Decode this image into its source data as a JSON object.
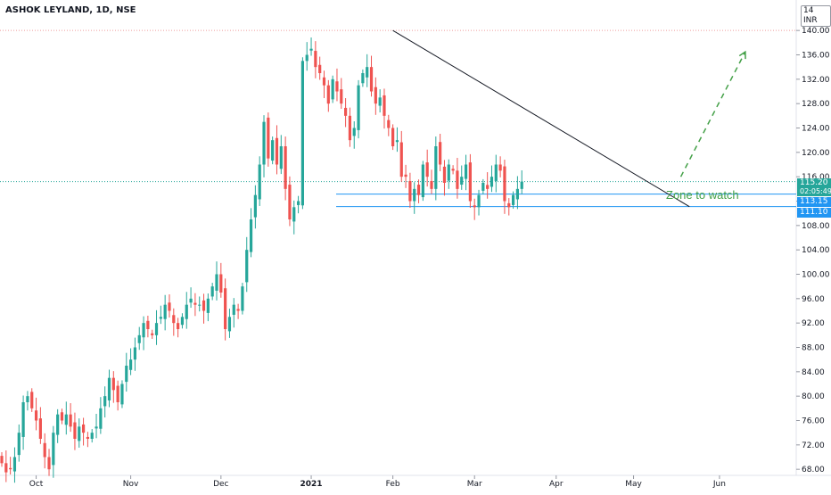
{
  "header": {
    "title": "ASHOK LEYLAND, 1D, NSE",
    "currency": "INR",
    "currency_prefix": "14"
  },
  "price_tags": {
    "last_price": "115.20",
    "countdown": "02:05:49",
    "level_upper": "113.15",
    "level_lower": "111.10",
    "last_color": "#26a69a",
    "level_color": "#2196f3"
  },
  "annotation": {
    "text": "Zone to watch",
    "color": "#43a047"
  },
  "chart_data": {
    "type": "candlestick",
    "title": "ASHOK LEYLAND, 1D, NSE",
    "xlabel": "",
    "ylabel": "",
    "ylim": [
      67,
      145
    ],
    "y_ticks": [
      "68.00",
      "72.00",
      "76.00",
      "80.00",
      "84.00",
      "88.00",
      "92.00",
      "96.00",
      "100.00",
      "104.00",
      "108.00",
      "112.00",
      "116.00",
      "120.00",
      "124.00",
      "128.00",
      "132.00",
      "136.00",
      "140.00"
    ],
    "x_ticks": [
      {
        "label": "Oct",
        "bar": 8,
        "bold": false
      },
      {
        "label": "Nov",
        "bar": 30,
        "bold": false
      },
      {
        "label": "Dec",
        "bar": 51,
        "bold": false
      },
      {
        "label": "2021",
        "bar": 72,
        "bold": true
      },
      {
        "label": "Feb",
        "bar": 91,
        "bold": false
      },
      {
        "label": "Mar",
        "bar": 110,
        "bold": false
      },
      {
        "label": "Apr",
        "bar": 129,
        "bold": false
      },
      {
        "label": "May",
        "bar": 147,
        "bold": false
      },
      {
        "label": "Jun",
        "bar": 167,
        "bold": false
      }
    ],
    "up_color": "#26a69a",
    "down_color": "#ef5350",
    "closes": [
      69,
      67.5,
      68,
      70,
      74,
      79,
      80,
      78,
      76,
      73,
      70,
      68,
      74,
      77,
      76,
      77,
      75,
      73,
      75,
      74,
      73,
      74,
      75,
      78,
      80,
      83,
      81,
      79,
      82,
      85,
      86,
      88,
      90,
      92,
      91,
      90,
      92,
      93,
      95,
      94,
      92,
      91,
      93,
      95,
      96,
      95,
      95,
      94,
      96,
      98,
      100,
      97,
      91,
      93,
      95,
      94,
      98,
      104,
      109,
      113,
      118,
      125,
      119,
      122,
      118,
      121,
      114,
      109,
      111,
      112,
      135,
      136,
      137,
      134,
      133,
      131,
      128,
      132,
      130,
      128,
      126,
      122,
      124,
      131,
      133,
      134,
      130,
      128,
      129,
      126,
      124,
      121,
      122,
      116,
      116,
      112,
      114,
      113,
      118,
      116,
      114,
      121,
      118,
      115,
      118,
      117,
      114,
      116,
      118,
      112,
      111,
      113,
      115,
      114,
      116,
      118,
      117,
      112,
      111,
      113,
      114,
      115.2
    ],
    "y_levels": {
      "last": 115.2,
      "upper": 113.15,
      "lower": 111.1,
      "dotted_high": 140.0
    },
    "trendline": {
      "from": {
        "bar": 91,
        "price": 140.0
      },
      "to": {
        "bar": 160,
        "price": 111.1
      }
    },
    "projection": {
      "from": {
        "bar": 158,
        "price": 116.0
      },
      "to": {
        "bar": 173,
        "price": 136.5
      }
    }
  }
}
